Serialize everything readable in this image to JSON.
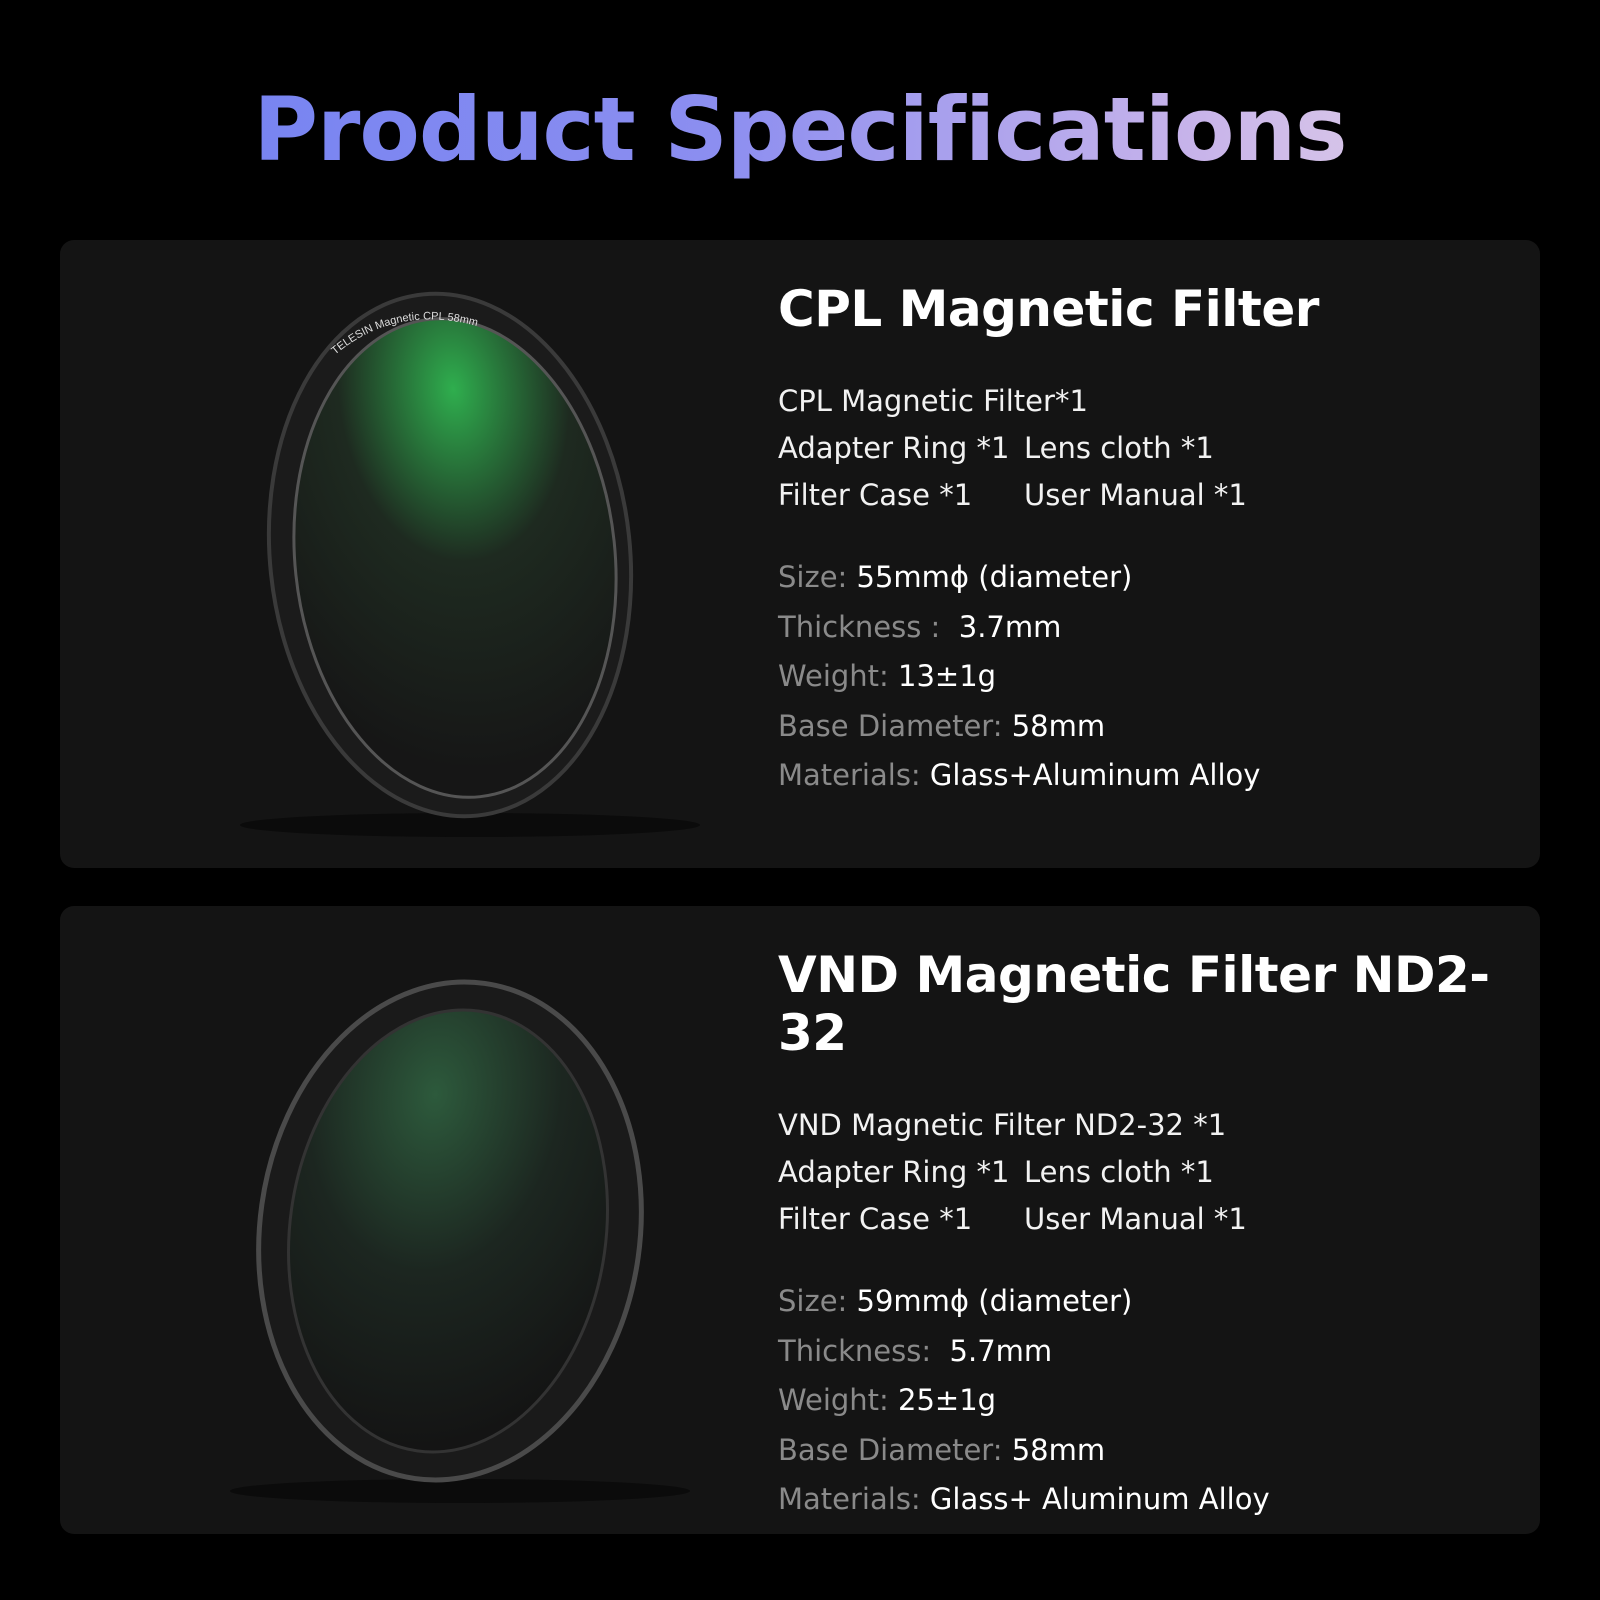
{
  "title": "Product Specifications",
  "products": [
    {
      "name": "CPL Magnetic Filter",
      "ring_text": "TELESIN Magnetic CPL 58mm",
      "includes": [
        "CPL Magnetic Filter*1",
        "Adapter Ring *1",
        "Lens cloth *1",
        "Filter Case *1",
        "User Manual *1"
      ],
      "specs": [
        {
          "label": "Size: ",
          "value": "55mmϕ (diameter)"
        },
        {
          "label": "Thickness :  ",
          "value": "3.7mm"
        },
        {
          "label": "Weight: ",
          "value": "13±1g"
        },
        {
          "label": "Base Diameter: ",
          "value": "58mm"
        },
        {
          "label": "Materials: ",
          "value": "Glass+Aluminum Alloy"
        }
      ]
    },
    {
      "name": "VND Magnetic Filter ND2-32",
      "includes": [
        "VND Magnetic Filter ND2-32 *1",
        "Adapter Ring *1",
        "Lens cloth *1",
        "Filter Case *1",
        "User Manual *1"
      ],
      "specs": [
        {
          "label": "Size: ",
          "value": "59mmϕ (diameter)"
        },
        {
          "label": "Thickness:  ",
          "value": "5.7mm"
        },
        {
          "label": "Weight: ",
          "value": "25±1g"
        },
        {
          "label": "Base Diameter: ",
          "value": "58mm"
        },
        {
          "label": "Materials: ",
          "value": "Glass+ Aluminum Alloy"
        }
      ]
    }
  ]
}
